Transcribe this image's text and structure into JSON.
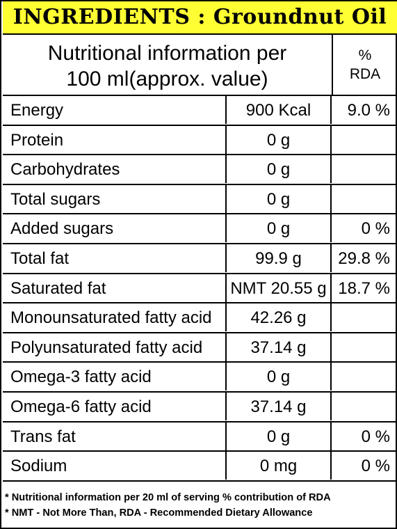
{
  "title": "INGREDIENTS : Groundnut Oil",
  "header": {
    "nutrition_line1": "Nutritional information per",
    "nutrition_line2": "100 ml(approx. value)",
    "rda_line1": "%",
    "rda_line2": "RDA"
  },
  "rows": [
    {
      "name": "Energy",
      "amount": "900 Kcal",
      "rda": "9.0 %"
    },
    {
      "name": "Protein",
      "amount": "0 g",
      "rda": ""
    },
    {
      "name": "Carbohydrates",
      "amount": "0 g",
      "rda": ""
    },
    {
      "name": "Total sugars",
      "amount": "0 g",
      "rda": ""
    },
    {
      "name": "Added sugars",
      "amount": "0 g",
      "rda": "0 %"
    },
    {
      "name": "Total fat",
      "amount": "99.9 g",
      "rda": "29.8 %"
    },
    {
      "name": "Saturated fat",
      "amount": "NMT 20.55 g",
      "rda": "18.7 %"
    },
    {
      "name": "Monounsaturated fatty acid",
      "amount": "42.26 g",
      "rda": ""
    },
    {
      "name": "Polyunsaturated fatty acid",
      "amount": "37.14 g",
      "rda": ""
    },
    {
      "name": "Omega-3 fatty acid",
      "amount": "0 g",
      "rda": ""
    },
    {
      "name": "Omega-6 fatty acid",
      "amount": "37.14 g",
      "rda": ""
    },
    {
      "name": "Trans fat",
      "amount": "0 g",
      "rda": "0 %"
    },
    {
      "name": "Sodium",
      "amount": "0 mg",
      "rda": "0 %"
    }
  ],
  "footnotes": [
    "* Nutritional information per 20 ml of serving % contribution of RDA",
    "* NMT - Not More Than,   RDA - Recommended Dietary Allowance"
  ],
  "colors": {
    "title_background": "#ffff33",
    "border": "#000000"
  }
}
